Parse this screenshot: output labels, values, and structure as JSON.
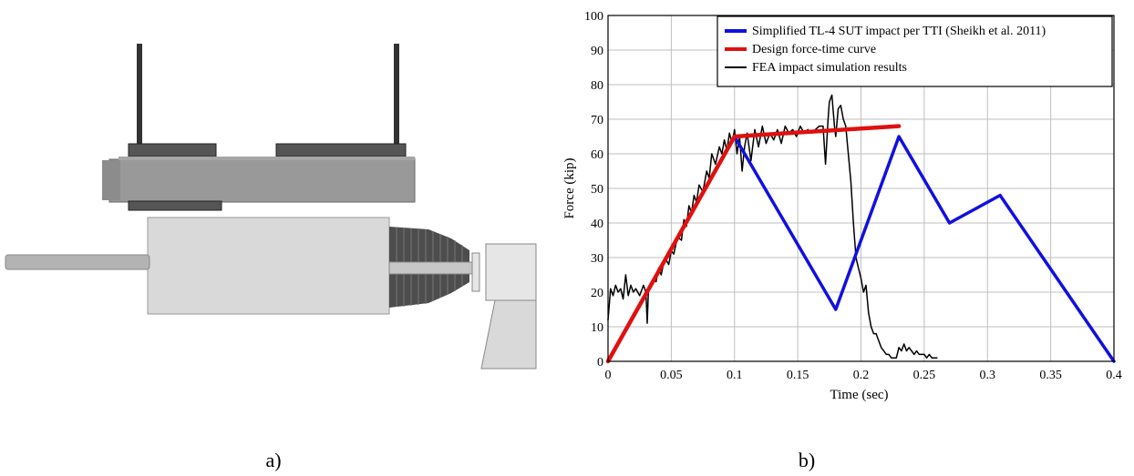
{
  "panels": {
    "a_label": "a)",
    "b_label": "b)"
  },
  "colors": {
    "blue_series": "#1010e0",
    "red_series": "#e01010",
    "black_series": "#000000",
    "grid": "#bfbfbf"
  },
  "chart_data": {
    "type": "line",
    "title": "",
    "xlabel": "Time (sec)",
    "ylabel": "Force (kip)",
    "xlim": [
      0,
      0.4
    ],
    "ylim": [
      0,
      100
    ],
    "xticks": [
      0,
      0.05,
      0.1,
      0.15,
      0.2,
      0.25,
      0.3,
      0.35,
      0.4
    ],
    "xtick_labels": [
      "0",
      "0.05",
      "0.1",
      "0.15",
      "0.2",
      "0.25",
      "0.3",
      "0.35",
      "0.4"
    ],
    "yticks": [
      0,
      10,
      20,
      30,
      40,
      50,
      60,
      70,
      80,
      90,
      100
    ],
    "ytick_labels": [
      "0",
      "10",
      "20",
      "30",
      "40",
      "50",
      "60",
      "70",
      "80",
      "90",
      "100"
    ],
    "grid": true,
    "legend_position": "top-right",
    "series": [
      {
        "name": "Simplified TL-4 SUT impact per TTI (Sheikh et al. 2011)",
        "color": "#1010e0",
        "x": [
          0.1,
          0.18,
          0.23,
          0.27,
          0.31,
          0.4
        ],
        "y": [
          65,
          15,
          65,
          40,
          48,
          0
        ]
      },
      {
        "name": "Design force-time curve",
        "color": "#e01010",
        "x": [
          0,
          0.1,
          0.23
        ],
        "y": [
          0,
          65,
          68
        ]
      },
      {
        "name": "FEA impact simulation results",
        "color": "#000000",
        "x": [
          0.0,
          0.002,
          0.004,
          0.006,
          0.008,
          0.01,
          0.012,
          0.014,
          0.016,
          0.018,
          0.02,
          0.022,
          0.025,
          0.028,
          0.03,
          0.031,
          0.032,
          0.034,
          0.036,
          0.038,
          0.04,
          0.042,
          0.045,
          0.048,
          0.05,
          0.052,
          0.055,
          0.058,
          0.06,
          0.062,
          0.064,
          0.066,
          0.068,
          0.07,
          0.072,
          0.075,
          0.078,
          0.08,
          0.082,
          0.085,
          0.088,
          0.09,
          0.092,
          0.094,
          0.096,
          0.098,
          0.1,
          0.102,
          0.104,
          0.106,
          0.108,
          0.11,
          0.113,
          0.116,
          0.119,
          0.122,
          0.125,
          0.128,
          0.131,
          0.134,
          0.137,
          0.14,
          0.143,
          0.146,
          0.149,
          0.152,
          0.155,
          0.158,
          0.161,
          0.164,
          0.167,
          0.17,
          0.172,
          0.174,
          0.175,
          0.177,
          0.179,
          0.18,
          0.182,
          0.184,
          0.186,
          0.188,
          0.19,
          0.192,
          0.194,
          0.196,
          0.198,
          0.2,
          0.202,
          0.204,
          0.206,
          0.208,
          0.21,
          0.212,
          0.214,
          0.216,
          0.218,
          0.22,
          0.222,
          0.224,
          0.226,
          0.228,
          0.23,
          0.232,
          0.234,
          0.236,
          0.238,
          0.24,
          0.242,
          0.244,
          0.246,
          0.248,
          0.25,
          0.252,
          0.254,
          0.256,
          0.258,
          0.26
        ],
        "y": [
          12,
          21,
          19,
          22,
          20,
          21,
          18,
          25,
          19,
          22,
          20,
          21,
          19,
          22,
          20,
          11,
          21,
          22,
          24,
          23,
          27,
          25,
          30,
          28,
          32,
          31,
          36,
          35,
          41,
          39,
          45,
          43,
          48,
          46,
          51,
          49,
          55,
          53,
          60,
          57,
          62,
          60,
          64,
          61,
          66,
          63,
          67,
          60,
          65,
          55,
          62,
          66,
          58,
          67,
          62,
          68,
          63,
          66,
          64,
          67,
          63,
          68,
          66,
          67,
          65,
          68,
          66,
          67,
          66,
          67,
          68,
          68,
          57,
          70,
          75,
          77,
          68,
          65,
          73,
          74,
          70,
          68,
          60,
          52,
          40,
          30,
          27,
          24,
          20,
          22,
          14,
          10,
          8,
          8,
          6,
          4,
          3,
          2,
          2,
          1,
          1,
          1,
          4,
          3,
          5,
          3,
          4,
          3,
          2,
          3,
          2,
          2,
          2,
          1,
          2,
          1,
          1,
          1
        ]
      }
    ]
  }
}
